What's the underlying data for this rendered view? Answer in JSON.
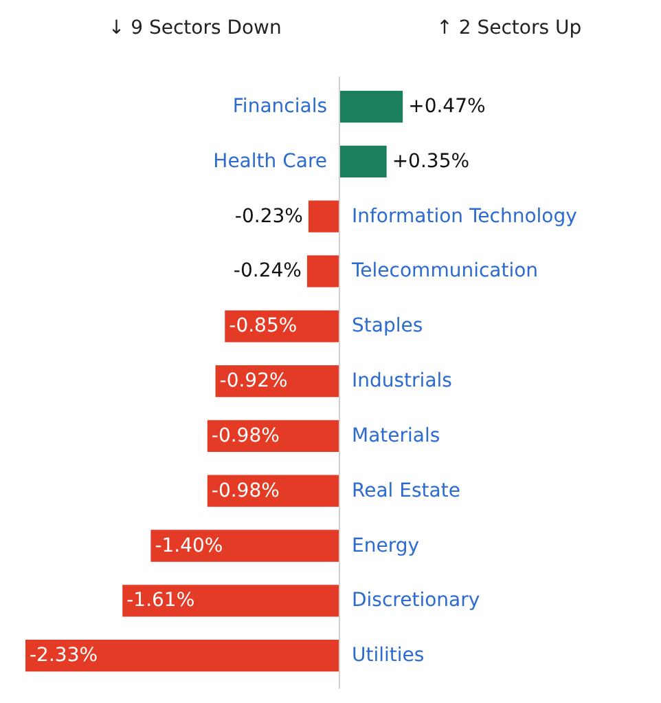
{
  "chart_data": {
    "type": "bar",
    "orientation": "horizontal",
    "data_labels": true,
    "categories": [
      "Financials",
      "Health Care",
      "Information Technology",
      "Telecommunication",
      "Staples",
      "Industrials",
      "Materials",
      "Real Estate",
      "Energy",
      "Discretionary",
      "Utilities"
    ],
    "values": [
      0.47,
      0.35,
      -0.23,
      -0.24,
      -0.85,
      -0.92,
      -0.98,
      -0.98,
      -1.4,
      -1.61,
      -2.33
    ],
    "colors": [
      "#1b7f5b",
      "#1b7f5b",
      "#e33b26",
      "#e33b26",
      "#e33b26",
      "#e33b26",
      "#e33b26",
      "#e33b26",
      "#e33b26",
      "#e33b26",
      "#e33b26"
    ],
    "value_labels": [
      "+0.47%",
      "+0.35%",
      "-0.23%",
      "-0.24%",
      "-0.85%",
      "-0.92%",
      "-0.98%",
      "-0.98%",
      "-1.40%",
      "-1.61%",
      "-2.33%"
    ],
    "annotations": [
      "↓ 9 Sectors Down",
      "↑ 2 Sectors Up"
    ]
  }
}
